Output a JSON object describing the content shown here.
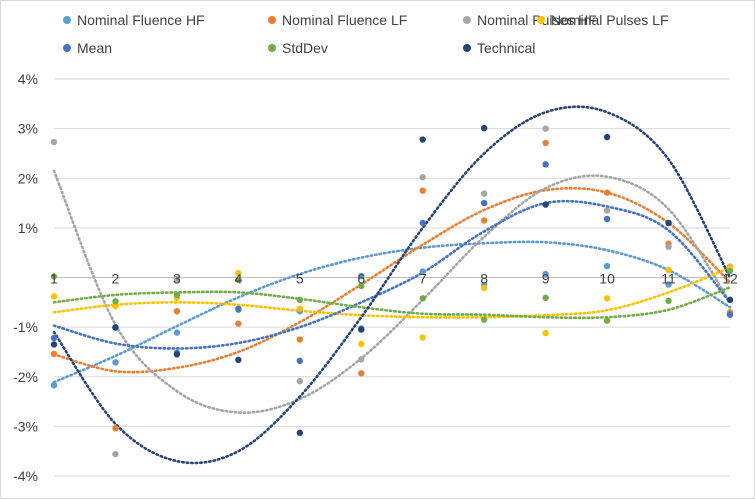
{
  "chart_data": {
    "type": "scatter",
    "trendlines": "polynomial, dotted",
    "x": [
      1,
      2,
      3,
      4,
      5,
      6,
      7,
      8,
      9,
      10,
      11,
      12
    ],
    "xticks": [
      "1",
      "2",
      "3",
      "4",
      "5",
      "6",
      "7",
      "8",
      "9",
      "10",
      "11",
      "12"
    ],
    "yticks": [
      "-4%",
      "-3%",
      "-2%",
      "-1%",
      "1%",
      "2%",
      "3%",
      "4%"
    ],
    "ylim": [
      -0.04,
      0.04
    ],
    "xlim": [
      1,
      12
    ],
    "grid": "horizontal",
    "legend_position": "top",
    "series": [
      {
        "name": "Nominal Fluence HF",
        "color": "#5b9bd5",
        "values": [
          -0.0217,
          -0.0171,
          -0.0111,
          -0.0065,
          -0.0068,
          0.0003,
          0.0012,
          -0.0015,
          0.0007,
          0.0023,
          -0.0014,
          -0.0072
        ],
        "trend": [
          -0.0211,
          -0.0158,
          -0.0098,
          -0.004,
          0.0007,
          0.004,
          0.006,
          0.0069,
          0.0071,
          0.0055,
          0.0015,
          -0.006
        ]
      },
      {
        "name": "Nominal Fluence LF",
        "color": "#ed7d31",
        "values": [
          -0.0154,
          -0.0304,
          -0.0068,
          -0.0093,
          -0.0125,
          -0.0193,
          0.0175,
          0.0115,
          0.0271,
          0.0171,
          0.0068,
          -0.007
        ],
        "trend": [
          -0.0155,
          -0.0189,
          -0.0182,
          -0.015,
          -0.009,
          -0.0014,
          0.0066,
          0.0136,
          0.0176,
          0.0171,
          0.011,
          -0.001
        ]
      },
      {
        "name": "Nominal Pulses HF",
        "color": "#a5a5a5",
        "values": [
          0.0273,
          -0.0356,
          -0.0003,
          -0.0063,
          -0.0209,
          -0.0165,
          0.0202,
          0.0169,
          0.03,
          0.0135,
          0.0062,
          0.0022
        ],
        "trend": [
          0.0215,
          -0.0095,
          -0.0229,
          -0.0272,
          -0.0245,
          -0.0163,
          -0.0045,
          0.0082,
          0.018,
          0.0203,
          0.0138,
          -0.005
        ]
      },
      {
        "name": "Nominal Pulses LF",
        "color": "#ffc000",
        "values": [
          -0.0038,
          -0.0058,
          -0.0041,
          0.0009,
          -0.0063,
          -0.0134,
          -0.0121,
          -0.0021,
          -0.0112,
          -0.0042,
          0.0015,
          0.002
        ],
        "trend": [
          -0.007,
          -0.0055,
          -0.005,
          -0.0055,
          -0.0067,
          -0.0076,
          -0.008,
          -0.008,
          -0.0076,
          -0.0066,
          -0.003,
          0.002
        ]
      },
      {
        "name": "Mean",
        "color": "#4472c4",
        "values": [
          -0.0122,
          -0.01,
          -0.0152,
          -0.0063,
          -0.0168,
          -0.0103,
          0.011,
          0.015,
          0.0228,
          0.0118,
          0.011,
          -0.0075
        ],
        "trend": [
          -0.0097,
          -0.0133,
          -0.0143,
          -0.0132,
          -0.01,
          -0.005,
          0.001,
          0.0093,
          0.015,
          0.0143,
          0.0095,
          -0.005
        ]
      },
      {
        "name": "StdDev",
        "color": "#70ad47",
        "values": [
          0.0002,
          -0.0048,
          -0.0035,
          -0.0005,
          -0.0045,
          -0.0017,
          -0.0042,
          -0.0085,
          -0.0041,
          -0.0087,
          -0.0047,
          0.0013
        ],
        "trend": [
          -0.005,
          -0.0035,
          -0.003,
          -0.003,
          -0.0043,
          -0.006,
          -0.0073,
          -0.0075,
          -0.008,
          -0.008,
          -0.0065,
          -0.002
        ]
      },
      {
        "name": "Technical",
        "color": "#264478",
        "values": [
          -0.0135,
          -0.0101,
          -0.0155,
          -0.0166,
          -0.0313,
          -0.0105,
          0.0278,
          0.0301,
          0.0147,
          0.0283,
          0.011,
          -0.0045
        ],
        "trend": [
          -0.011,
          -0.0295,
          -0.037,
          -0.035,
          -0.024,
          -0.008,
          0.01,
          0.025,
          0.0333,
          0.0333,
          0.0238,
          0.0
        ]
      }
    ]
  }
}
